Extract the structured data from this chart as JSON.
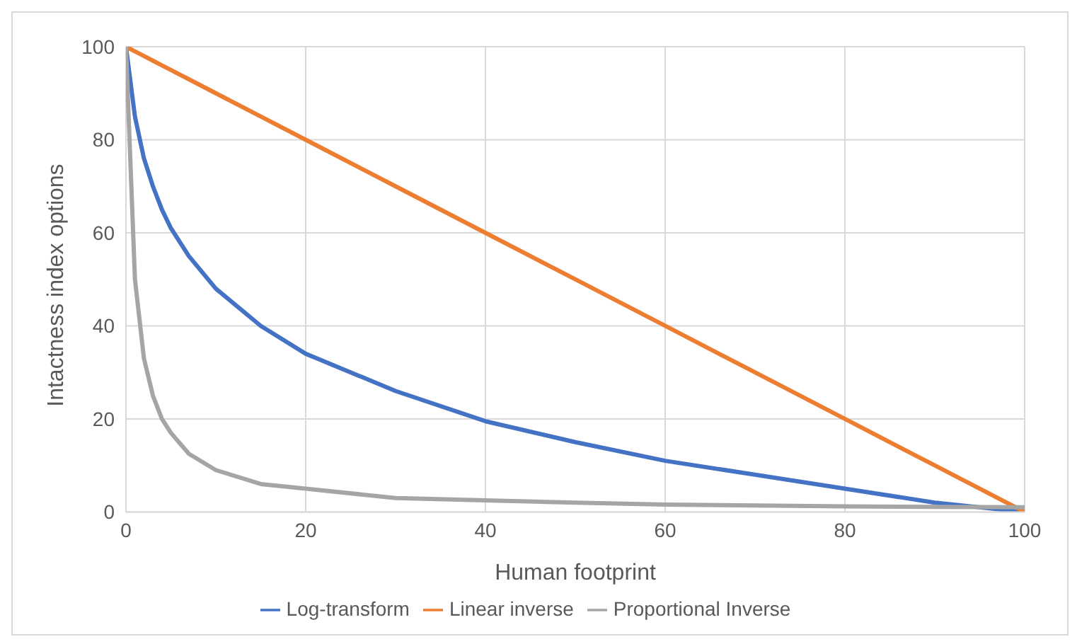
{
  "chart_data": {
    "type": "line",
    "xlabel": "Human footprint",
    "ylabel": "Intactness index options",
    "x": [
      0,
      1,
      2,
      3,
      4,
      5,
      7,
      10,
      15,
      20,
      30,
      40,
      50,
      60,
      70,
      80,
      90,
      100
    ],
    "series": [
      {
        "name": "Log-transform",
        "color": "#4472c4",
        "values": [
          100,
          85,
          76,
          70,
          65,
          61,
          55,
          48,
          40,
          34,
          26,
          19.5,
          15,
          11,
          8,
          5,
          2,
          0
        ]
      },
      {
        "name": "Linear inverse",
        "color": "#ed7d31",
        "values": [
          100,
          99,
          98,
          97,
          96,
          95,
          93,
          90,
          85,
          80,
          70,
          60,
          50,
          40,
          30,
          20,
          10,
          0
        ]
      },
      {
        "name": "Proportional Inverse",
        "color": "#a5a5a5",
        "values": [
          100,
          50,
          33,
          25,
          20,
          17,
          12.5,
          9,
          6,
          5,
          3,
          2.5,
          2,
          1.6,
          1.4,
          1.2,
          1.1,
          1
        ]
      }
    ],
    "xlim": [
      0,
      100
    ],
    "xticks": [
      0,
      20,
      40,
      60,
      80,
      100
    ],
    "ylim": [
      0,
      100
    ],
    "yticks": [
      0,
      20,
      40,
      60,
      80,
      100
    ],
    "grid": true,
    "legend": "bottom",
    "marker": "none",
    "line_style": "solid"
  }
}
